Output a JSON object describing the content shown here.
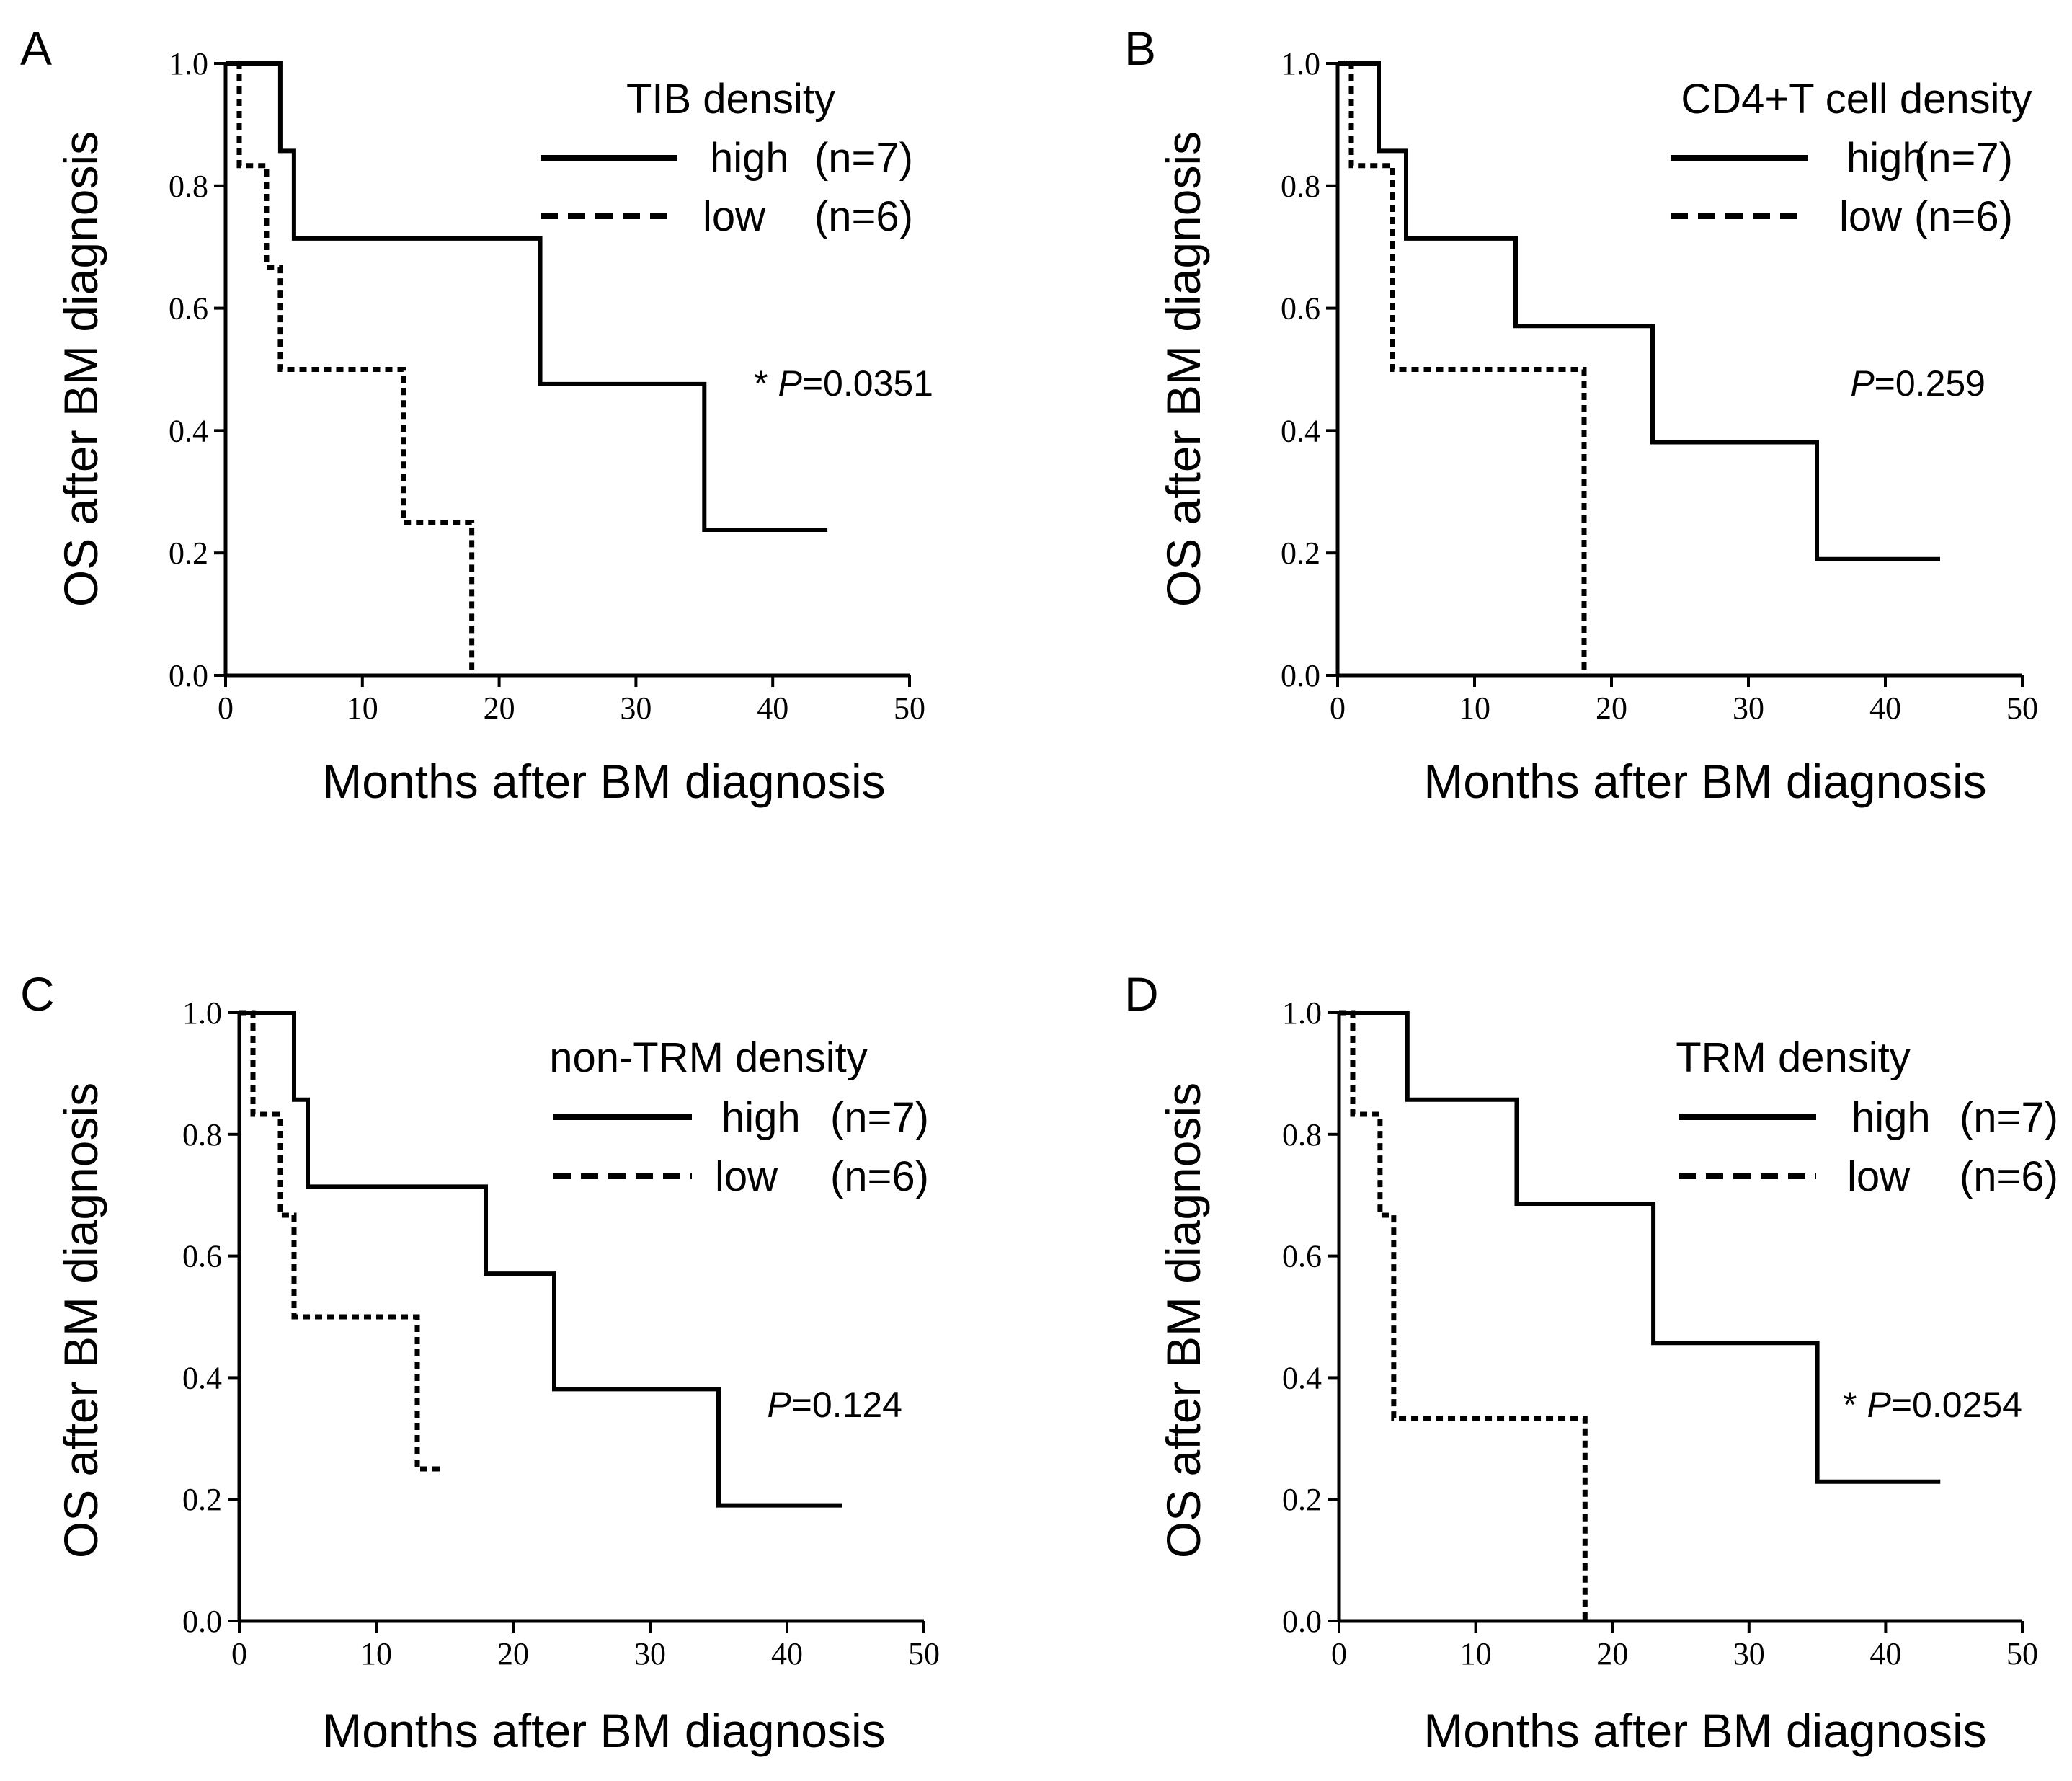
{
  "chart_data": [
    {
      "type": "line",
      "panel_label": "A",
      "legend_title": "TIB density",
      "xlabel": "Months after BM diagnosis",
      "ylabel": "OS  after BM diagnosis",
      "xlim": [
        0,
        50
      ],
      "ylim": [
        0.0,
        1.0
      ],
      "xticks": [
        "0",
        "10",
        "20",
        "30",
        "40",
        "50"
      ],
      "yticks": [
        "0.0",
        "0.2",
        "0.4",
        "0.6",
        "0.8",
        "1.0"
      ],
      "pvalue": {
        "prefix": "* ",
        "p": "P",
        "value": "=0.0351"
      },
      "legend_position": "top-right",
      "series": [
        {
          "name": "high (n=7)",
          "group": "high",
          "n": "(n=7)",
          "style": "solid",
          "x": [
            0,
            4,
            5,
            23,
            35,
            44
          ],
          "y": [
            1.0,
            0.857,
            0.714,
            0.476,
            0.238,
            0.238
          ]
        },
        {
          "name": "low (n=6)",
          "group": "low",
          "n": "(n=6)",
          "style": "dotted",
          "x": [
            0,
            1,
            3,
            4,
            13,
            18,
            18
          ],
          "y": [
            1.0,
            0.833,
            0.667,
            0.5,
            0.25,
            0.0,
            0.0
          ]
        }
      ]
    },
    {
      "type": "line",
      "panel_label": "B",
      "legend_title": "CD4+T cell density",
      "xlabel": "Months after BM diagnosis",
      "ylabel": "OS  after BM diagnosis",
      "xlim": [
        0,
        50
      ],
      "ylim": [
        0.0,
        1.0
      ],
      "xticks": [
        "0",
        "10",
        "20",
        "30",
        "40",
        "50"
      ],
      "yticks": [
        "0.0",
        "0.2",
        "0.4",
        "0.6",
        "0.8",
        "1.0"
      ],
      "pvalue": {
        "prefix": "",
        "p": "P",
        "value": "=0.259"
      },
      "legend_position": "top-right",
      "series": [
        {
          "name": "high (n=7)",
          "group": "high",
          "n": "(n=7)",
          "style": "solid",
          "x": [
            0,
            3,
            5,
            13,
            23,
            35,
            44
          ],
          "y": [
            1.0,
            0.857,
            0.714,
            0.571,
            0.381,
            0.19,
            0.19
          ]
        },
        {
          "name": "low (n=6)",
          "group": "low",
          "n": "(n=6)",
          "style": "dotted",
          "x": [
            0,
            1,
            4,
            18,
            18
          ],
          "y": [
            1.0,
            0.833,
            0.5,
            0.0,
            0.0
          ]
        }
      ]
    },
    {
      "type": "line",
      "panel_label": "C",
      "legend_title": "non-TRM density",
      "xlabel": "Months after BM diagnosis",
      "ylabel": "OS  after BM diagnosis",
      "xlim": [
        0,
        50
      ],
      "ylim": [
        0.0,
        1.0
      ],
      "xticks": [
        "0",
        "10",
        "20",
        "30",
        "40",
        "50"
      ],
      "yticks": [
        "0.0",
        "0.2",
        "0.4",
        "0.6",
        "0.8",
        "1.0"
      ],
      "pvalue": {
        "prefix": "",
        "p": "P",
        "value": "=0.124"
      },
      "legend_position": "top-right",
      "series": [
        {
          "name": "high (n=7)",
          "group": "high",
          "n": "(n=7)",
          "style": "solid",
          "x": [
            0,
            4,
            5,
            18,
            23,
            35,
            44
          ],
          "y": [
            1.0,
            0.857,
            0.714,
            0.571,
            0.381,
            0.19,
            0.19
          ]
        },
        {
          "name": "low (n=6)",
          "group": "low",
          "n": "(n=6)",
          "style": "dotted",
          "x": [
            0,
            1,
            3,
            4,
            13,
            15
          ],
          "y": [
            1.0,
            0.833,
            0.667,
            0.5,
            0.25,
            0.25
          ]
        }
      ]
    },
    {
      "type": "line",
      "panel_label": "D",
      "legend_title": "TRM density",
      "xlabel": "Months after BM diagnosis",
      "ylabel": "OS  after BM diagnosis",
      "xlim": [
        0,
        50
      ],
      "ylim": [
        0.0,
        1.0
      ],
      "xticks": [
        "0",
        "10",
        "20",
        "30",
        "40",
        "50"
      ],
      "yticks": [
        "0.0",
        "0.2",
        "0.4",
        "0.6",
        "0.8",
        "1.0"
      ],
      "pvalue": {
        "prefix": "* ",
        "p": "P",
        "value": "=0.0254"
      },
      "legend_position": "top-right",
      "series": [
        {
          "name": "high (n=7)",
          "group": "high",
          "n": "(n=7)",
          "style": "solid",
          "x": [
            0,
            5,
            13,
            23,
            35,
            44
          ],
          "y": [
            1.0,
            0.857,
            0.686,
            0.457,
            0.229,
            0.229
          ]
        },
        {
          "name": "low (n=6)",
          "group": "low",
          "n": "(n=6)",
          "style": "dotted",
          "x": [
            0,
            1,
            3,
            4,
            18,
            18
          ],
          "y": [
            1.0,
            0.833,
            0.667,
            0.333,
            0.0,
            0.0
          ]
        }
      ]
    }
  ]
}
